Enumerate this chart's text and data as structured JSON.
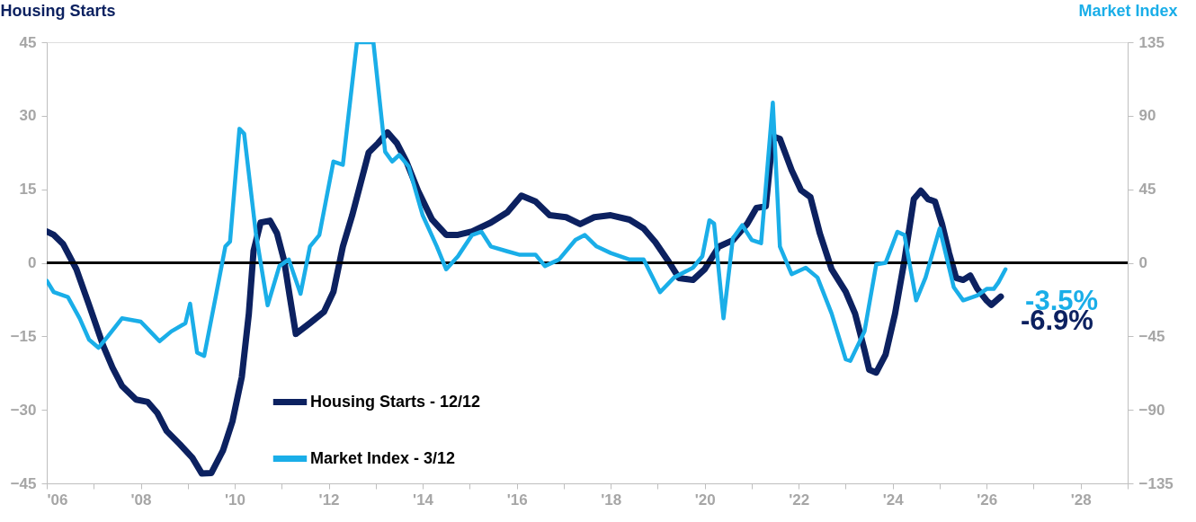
{
  "chart_data": {
    "type": "line",
    "ylabel": "Housing Starts",
    "y2label": "Market Index",
    "xlim": [
      2006,
      2029
    ],
    "xticks": [
      {
        "value": 2006,
        "label": "'06"
      },
      {
        "value": 2007,
        "label": null
      },
      {
        "value": 2008,
        "label": "'08"
      },
      {
        "value": 2009,
        "label": null
      },
      {
        "value": 2010,
        "label": "'10"
      },
      {
        "value": 2011,
        "label": null
      },
      {
        "value": 2012,
        "label": "'12"
      },
      {
        "value": 2013,
        "label": null
      },
      {
        "value": 2014,
        "label": "'14"
      },
      {
        "value": 2015,
        "label": null
      },
      {
        "value": 2016,
        "label": "'16"
      },
      {
        "value": 2017,
        "label": null
      },
      {
        "value": 2018,
        "label": "'18"
      },
      {
        "value": 2019,
        "label": null
      },
      {
        "value": 2020,
        "label": "'20"
      },
      {
        "value": 2021,
        "label": null
      },
      {
        "value": 2022,
        "label": "'22"
      },
      {
        "value": 2023,
        "label": null
      },
      {
        "value": 2024,
        "label": "'24"
      },
      {
        "value": 2025,
        "label": null
      },
      {
        "value": 2026,
        "label": "'26"
      },
      {
        "value": 2027,
        "label": null
      },
      {
        "value": 2028,
        "label": "'28"
      },
      {
        "value": 2029,
        "label": null
      }
    ],
    "ylim": [
      -45,
      45
    ],
    "yticks": [
      -45,
      -30,
      -15,
      0,
      15,
      30,
      45
    ],
    "y2lim": [
      -135,
      135
    ],
    "y2ticks": [
      -135,
      -90,
      -45,
      0,
      45,
      90,
      135
    ],
    "series": [
      {
        "name": "Housing Starts - 12/12",
        "color": "#0c2160",
        "x": [
          2006.0,
          2006.15,
          2006.35,
          2006.63,
          2006.9,
          2007.2,
          2007.4,
          2007.6,
          2007.9,
          2008.15,
          2008.35,
          2008.55,
          2008.83,
          2009.1,
          2009.3,
          2009.5,
          2009.75,
          2009.95,
          2010.15,
          2010.3,
          2010.4,
          2010.55,
          2010.75,
          2010.9,
          2011.05,
          2011.17,
          2011.3,
          2011.6,
          2011.9,
          2012.1,
          2012.3,
          2012.5,
          2012.65,
          2012.85,
          2013.05,
          2013.25,
          2013.45,
          2013.65,
          2013.9,
          2014.2,
          2014.5,
          2014.75,
          2015.05,
          2015.45,
          2015.8,
          2016.1,
          2016.4,
          2016.7,
          2017.05,
          2017.35,
          2017.65,
          2018.0,
          2018.4,
          2018.7,
          2018.95,
          2019.25,
          2019.45,
          2019.75,
          2020.0,
          2020.3,
          2020.6,
          2020.9,
          2021.1,
          2021.3,
          2021.45,
          2021.6,
          2021.85,
          2022.05,
          2022.25,
          2022.45,
          2022.7,
          2023.0,
          2023.2,
          2023.4,
          2023.5,
          2023.65,
          2023.85,
          2024.05,
          2024.25,
          2024.45,
          2024.6,
          2024.75,
          2024.9,
          2025.05,
          2025.2,
          2025.35,
          2025.5,
          2025.65,
          2025.8,
          2026.0,
          2026.1,
          2026.3
        ],
        "values": [
          6.4,
          5.7,
          3.8,
          -1.3,
          -8.6,
          -16.9,
          -21.4,
          -25.1,
          -27.9,
          -28.4,
          -30.6,
          -34.3,
          -37,
          -39.8,
          -43,
          -42.9,
          -38.3,
          -32.4,
          -23.3,
          -10.4,
          2.4,
          8.2,
          8.6,
          6,
          0.5,
          -6.8,
          -14.5,
          -12.3,
          -10,
          -5.9,
          3.3,
          9.7,
          15.2,
          22.5,
          24.4,
          26.6,
          24.4,
          20.7,
          14.7,
          8.8,
          5.7,
          5.7,
          6.4,
          8.2,
          10.3,
          13.7,
          12.5,
          9.7,
          9.3,
          7.9,
          9.3,
          9.7,
          8.8,
          7,
          4.2,
          0,
          -3.1,
          -3.5,
          -1.3,
          3.3,
          4.6,
          7.9,
          11.2,
          11.5,
          25.8,
          25.3,
          18.9,
          14.8,
          13.4,
          6,
          -1.3,
          -5.9,
          -10.4,
          -17.8,
          -21.8,
          -22.4,
          -18.7,
          -10.4,
          0.5,
          13,
          14.7,
          13,
          12.5,
          7.9,
          2,
          -3.1,
          -3.5,
          -2.6,
          -5.3,
          -7.7,
          -8.6,
          -6.9
        ]
      },
      {
        "name": "Market Index - 3/12",
        "color": "#1aaee8",
        "axis": "y2",
        "x": [
          2006.0,
          2006.15,
          2006.45,
          2006.7,
          2006.9,
          2007.1,
          2007.3,
          2007.6,
          2008.0,
          2008.2,
          2008.4,
          2008.65,
          2008.95,
          2009.05,
          2009.2,
          2009.35,
          2009.6,
          2009.8,
          2009.9,
          2010.1,
          2010.2,
          2010.45,
          2010.7,
          2010.95,
          2011.15,
          2011.4,
          2011.6,
          2011.8,
          2012.1,
          2012.3,
          2012.6,
          2012.95,
          2013.2,
          2013.35,
          2013.5,
          2013.7,
          2014.0,
          2014.3,
          2014.5,
          2014.75,
          2015.05,
          2015.25,
          2015.45,
          2015.8,
          2016.05,
          2016.4,
          2016.6,
          2016.9,
          2017.25,
          2017.45,
          2017.7,
          2018.0,
          2018.4,
          2018.7,
          2019.05,
          2019.35,
          2019.75,
          2019.95,
          2020.1,
          2020.2,
          2020.4,
          2020.6,
          2020.8,
          2021.0,
          2021.2,
          2021.45,
          2021.6,
          2021.85,
          2022.15,
          2022.4,
          2022.7,
          2023.0,
          2023.1,
          2023.4,
          2023.65,
          2023.85,
          2024.1,
          2024.25,
          2024.5,
          2024.7,
          2025.0,
          2025.3,
          2025.5,
          2025.8,
          2026.0,
          2026.15,
          2026.25,
          2026.4
        ],
        "values": [
          -11,
          -18,
          -21,
          -34,
          -47,
          -52,
          -45,
          -34,
          -36,
          -42,
          -48,
          -42,
          -37,
          -25,
          -55,
          -57,
          -20,
          10,
          13,
          82,
          79,
          18,
          -26,
          -2,
          2,
          -19,
          10,
          17,
          62,
          60,
          135,
          135,
          68,
          62,
          66,
          59,
          29,
          10,
          -4,
          4,
          17,
          19,
          10,
          7,
          5,
          5,
          -2,
          2,
          14,
          17,
          10,
          6,
          2,
          2,
          -18,
          -9,
          -3,
          4,
          26,
          24,
          -34,
          15,
          23,
          14,
          12,
          98,
          10,
          -7,
          -3,
          -9,
          -31,
          -59,
          -60,
          -42,
          -1,
          0,
          19,
          17,
          -23,
          -9,
          21,
          -15,
          -23,
          -20,
          -16,
          -16,
          -12,
          -4
        ]
      }
    ],
    "annotations": [
      "-3.5%",
      "-6.9%"
    ],
    "ref_lines": [
      {
        "axis": "y",
        "value": 0,
        "color": "#000000"
      }
    ],
    "legend": "bottom left",
    "grid": false,
    "marker": "none",
    "line_style": "solid"
  }
}
